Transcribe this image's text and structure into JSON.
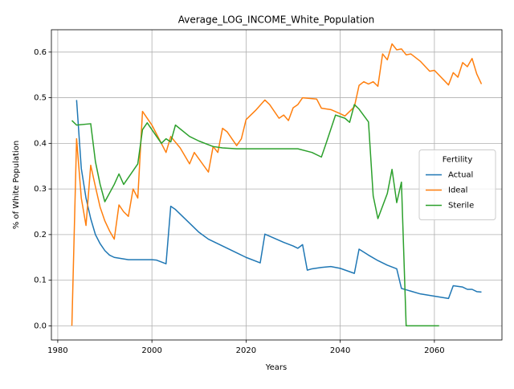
{
  "chart_data": {
    "type": "line",
    "title": "Average_LOG_INCOME_White_Population",
    "xlabel": "Years",
    "ylabel": "% of White Population",
    "xlim": [
      1978.65,
      2074.35
    ],
    "ylim": [
      -0.031,
      0.649
    ],
    "xticks": [
      1980,
      2000,
      2020,
      2040,
      2060
    ],
    "yticks": [
      {
        "value": 0,
        "label": "0.0"
      },
      {
        "value": 0.1,
        "label": "0.1"
      },
      {
        "value": 0.2,
        "label": "0.2"
      },
      {
        "value": 0.3,
        "label": "0.3"
      },
      {
        "value": 0.4,
        "label": "0.4"
      },
      {
        "value": 0.5,
        "label": "0.5"
      },
      {
        "value": 0.6,
        "label": "0.6"
      }
    ],
    "grid": true,
    "legend_title": "Fertility",
    "legend_loc": "center right",
    "series": [
      {
        "name": "Actual",
        "color": "#1f77b4",
        "x": [
          1984,
          1985,
          1986,
          1987,
          1988,
          1989,
          1990,
          1991,
          1992,
          1995,
          2000,
          2001,
          2003,
          2004,
          2005,
          2008,
          2010,
          2012,
          2015,
          2018,
          2020,
          2023,
          2024,
          2026,
          2028,
          2030,
          2031,
          2032,
          2033,
          2034,
          2036,
          2038,
          2040,
          2043,
          2044,
          2046,
          2048,
          2050,
          2052,
          2053,
          2055,
          2057,
          2060,
          2063,
          2064,
          2066,
          2067,
          2068,
          2069,
          2070
        ],
        "values": [
          0.495,
          0.345,
          0.28,
          0.235,
          0.2,
          0.18,
          0.165,
          0.155,
          0.15,
          0.145,
          0.145,
          0.144,
          0.136,
          0.262,
          0.255,
          0.225,
          0.205,
          0.19,
          0.175,
          0.16,
          0.15,
          0.138,
          0.201,
          0.192,
          0.183,
          0.175,
          0.17,
          0.178,
          0.122,
          0.125,
          0.128,
          0.13,
          0.126,
          0.115,
          0.168,
          0.155,
          0.143,
          0.133,
          0.125,
          0.082,
          0.076,
          0.07,
          0.065,
          0.06,
          0.088,
          0.085,
          0.08,
          0.08,
          0.075,
          0.074
        ]
      },
      {
        "name": "Ideal",
        "color": "#ff7f0e",
        "x": [
          1983,
          1984,
          1985,
          1986,
          1987,
          1988,
          1989,
          1990,
          1991,
          1992,
          1993,
          1994,
          1995,
          1996,
          1997,
          1998,
          2000,
          2002,
          2003,
          2004,
          2006,
          2008,
          2009,
          2012,
          2013,
          2014,
          2015,
          2016,
          2018,
          2019,
          2020,
          2022,
          2024,
          2025,
          2027,
          2028,
          2029,
          2030,
          2031,
          2032,
          2035,
          2036,
          2038,
          2040,
          2041,
          2043,
          2044,
          2045,
          2046,
          2047,
          2048,
          2049,
          2050,
          2051,
          2052,
          2053,
          2054,
          2055,
          2057,
          2059,
          2060,
          2063,
          2064,
          2065,
          2066,
          2067,
          2068,
          2069,
          2070
        ],
        "values": [
          0.0,
          0.41,
          0.28,
          0.22,
          0.352,
          0.305,
          0.26,
          0.23,
          0.208,
          0.19,
          0.265,
          0.25,
          0.24,
          0.3,
          0.28,
          0.47,
          0.44,
          0.4,
          0.38,
          0.415,
          0.39,
          0.355,
          0.38,
          0.337,
          0.393,
          0.38,
          0.433,
          0.425,
          0.395,
          0.41,
          0.452,
          0.472,
          0.495,
          0.485,
          0.455,
          0.462,
          0.45,
          0.478,
          0.485,
          0.5,
          0.497,
          0.477,
          0.474,
          0.465,
          0.46,
          0.48,
          0.527,
          0.535,
          0.53,
          0.535,
          0.525,
          0.596,
          0.583,
          0.618,
          0.605,
          0.607,
          0.594,
          0.596,
          0.58,
          0.558,
          0.56,
          0.528,
          0.555,
          0.545,
          0.577,
          0.568,
          0.586,
          0.552,
          0.53
        ]
      },
      {
        "name": "Sterile",
        "color": "#2ca02c",
        "x": [
          1983,
          1984,
          1987,
          1988,
          1989,
          1990,
          1992,
          1993,
          1994,
          1996,
          1997,
          1998,
          1999,
          2002,
          2003,
          2004,
          2005,
          2008,
          2010,
          2013,
          2015,
          2018,
          2031,
          2034,
          2036,
          2037,
          2039,
          2041,
          2042,
          2043,
          2044,
          2046,
          2047,
          2048,
          2050,
          2051,
          2052,
          2053,
          2054,
          2061
        ],
        "values": [
          0.45,
          0.44,
          0.443,
          0.36,
          0.31,
          0.272,
          0.31,
          0.333,
          0.31,
          0.34,
          0.355,
          0.43,
          0.445,
          0.4,
          0.41,
          0.403,
          0.44,
          0.415,
          0.405,
          0.393,
          0.39,
          0.388,
          0.388,
          0.38,
          0.37,
          0.4,
          0.462,
          0.455,
          0.446,
          0.485,
          0.475,
          0.447,
          0.285,
          0.235,
          0.29,
          0.343,
          0.27,
          0.315,
          0.0,
          0.0
        ]
      }
    ]
  }
}
